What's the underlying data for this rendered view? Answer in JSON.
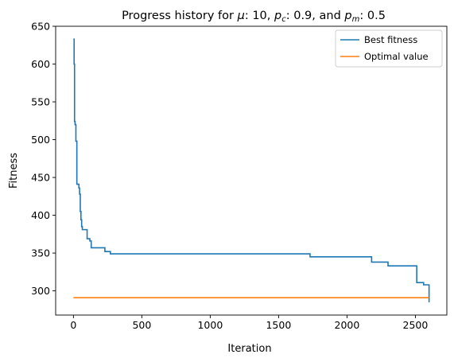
{
  "chart_data": {
    "type": "line",
    "title": "Progress history for μ: 10, pc: 0.9, and pm: 0.5",
    "title_parts": [
      {
        "text": "Progress history for ",
        "style": "normal"
      },
      {
        "text": "μ",
        "style": "italic"
      },
      {
        "text": ": 10, ",
        "style": "normal"
      },
      {
        "text": "p",
        "style": "italic"
      },
      {
        "text": "c",
        "style": "italic-sub"
      },
      {
        "text": ": 0.9, and ",
        "style": "normal"
      },
      {
        "text": "p",
        "style": "italic"
      },
      {
        "text": "m",
        "style": "italic-sub"
      },
      {
        "text": ": 0.5",
        "style": "normal"
      }
    ],
    "xlabel": "Iteration",
    "ylabel": "Fitness",
    "xlim": [
      -130,
      2730
    ],
    "ylim": [
      268,
      650
    ],
    "xticks": [
      0,
      500,
      1000,
      1500,
      2000,
      2500
    ],
    "yticks": [
      300,
      350,
      400,
      450,
      500,
      550,
      600,
      650
    ],
    "grid": false,
    "legend_position": "top-right",
    "series": [
      {
        "name": "Best fitness",
        "color": "#1f77b4",
        "step": true,
        "points": [
          [
            0,
            633
          ],
          [
            5,
            600
          ],
          [
            8,
            524
          ],
          [
            12,
            520
          ],
          [
            18,
            498
          ],
          [
            25,
            441
          ],
          [
            32,
            441
          ],
          [
            40,
            436
          ],
          [
            45,
            428
          ],
          [
            50,
            405
          ],
          [
            55,
            394
          ],
          [
            60,
            385
          ],
          [
            65,
            381
          ],
          [
            80,
            381
          ],
          [
            100,
            369
          ],
          [
            120,
            366
          ],
          [
            130,
            357
          ],
          [
            230,
            352
          ],
          [
            270,
            349
          ],
          [
            1730,
            345
          ],
          [
            2180,
            338
          ],
          [
            2300,
            333
          ],
          [
            2510,
            311
          ],
          [
            2560,
            308
          ],
          [
            2600,
            285
          ]
        ]
      },
      {
        "name": "Optimal value",
        "color": "#ff7f0e",
        "step": false,
        "points": [
          [
            0,
            291
          ],
          [
            2600,
            291
          ]
        ]
      }
    ]
  }
}
